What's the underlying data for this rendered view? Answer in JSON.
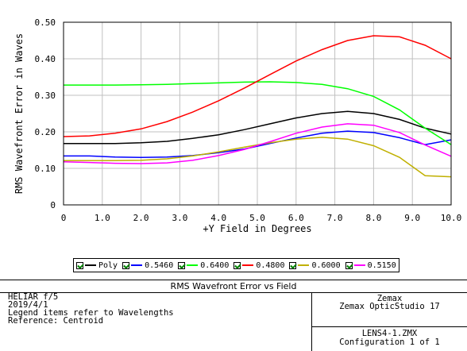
{
  "chart_data": {
    "type": "line",
    "xlabel": "+Y Field in Degrees",
    "ylabel": "RMS Wavefront Error in Waves",
    "xlim": [
      0,
      10
    ],
    "ylim": [
      0,
      0.5
    ],
    "x_ticks": [
      "0",
      "1.0",
      "2.0",
      "3.0",
      "4.0",
      "5.0",
      "6.0",
      "7.0",
      "8.0",
      "9.0",
      "10.0"
    ],
    "y_ticks": [
      "0",
      "0.10",
      "0.20",
      "0.30",
      "0.40",
      "0.50"
    ],
    "x_tick_values": [
      0,
      1,
      2,
      3,
      4,
      5,
      6,
      7,
      8,
      9,
      10
    ],
    "y_tick_values": [
      0,
      0.1,
      0.2,
      0.3,
      0.4,
      0.5
    ],
    "grid": true,
    "legend_position": "bottom",
    "series": [
      {
        "name": "Poly",
        "color": "#000000",
        "x": [
          0,
          0.67,
          1.33,
          2,
          2.67,
          3.33,
          4,
          4.67,
          5.33,
          6,
          6.67,
          7.33,
          8,
          8.67,
          9.33,
          10
        ],
        "y": [
          0.168,
          0.168,
          0.168,
          0.17,
          0.174,
          0.182,
          0.192,
          0.206,
          0.222,
          0.238,
          0.25,
          0.256,
          0.25,
          0.234,
          0.21,
          0.194
        ]
      },
      {
        "name": "0.5460",
        "color": "#0000ff",
        "x": [
          0,
          0.67,
          1.33,
          2,
          2.67,
          3.33,
          4,
          4.67,
          5.33,
          6,
          6.67,
          7.33,
          8,
          8.67,
          9.33,
          10
        ],
        "y": [
          0.134,
          0.134,
          0.131,
          0.13,
          0.131,
          0.135,
          0.143,
          0.153,
          0.168,
          0.183,
          0.196,
          0.202,
          0.198,
          0.184,
          0.165,
          0.178
        ]
      },
      {
        "name": "0.6400",
        "color": "#00ff00",
        "x": [
          0,
          0.67,
          1.33,
          2,
          2.67,
          3.33,
          4,
          4.67,
          5.33,
          6,
          6.67,
          7.33,
          8,
          8.67,
          9.33,
          10
        ],
        "y": [
          0.328,
          0.328,
          0.328,
          0.329,
          0.33,
          0.332,
          0.334,
          0.336,
          0.337,
          0.335,
          0.33,
          0.318,
          0.297,
          0.26,
          0.21,
          0.165
        ]
      },
      {
        "name": "0.4800",
        "color": "#ff0000",
        "x": [
          0,
          0.67,
          1.33,
          2,
          2.67,
          3.33,
          4,
          4.67,
          5.33,
          6,
          6.67,
          7.33,
          8,
          8.67,
          9.33,
          10
        ],
        "y": [
          0.187,
          0.189,
          0.196,
          0.208,
          0.228,
          0.254,
          0.285,
          0.32,
          0.357,
          0.394,
          0.425,
          0.45,
          0.463,
          0.46,
          0.437,
          0.4
        ]
      },
      {
        "name": "0.6000",
        "color": "#c0b000",
        "x": [
          0,
          0.67,
          1.33,
          2,
          2.67,
          3.33,
          4,
          4.67,
          5.33,
          6,
          6.67,
          7.33,
          8,
          8.67,
          9.33,
          10
        ],
        "y": [
          0.121,
          0.121,
          0.121,
          0.122,
          0.126,
          0.134,
          0.145,
          0.158,
          0.17,
          0.18,
          0.185,
          0.18,
          0.162,
          0.13,
          0.08,
          0.077
        ]
      },
      {
        "name": "0.5150",
        "color": "#ff00ff",
        "x": [
          0,
          0.67,
          1.33,
          2,
          2.67,
          3.33,
          4,
          4.67,
          5.33,
          6,
          6.67,
          7.33,
          8,
          8.67,
          9.33,
          10
        ],
        "y": [
          0.118,
          0.116,
          0.114,
          0.113,
          0.115,
          0.122,
          0.135,
          0.152,
          0.173,
          0.196,
          0.213,
          0.222,
          0.218,
          0.198,
          0.164,
          0.133
        ]
      }
    ]
  },
  "infobox": {
    "title": "RMS Wavefront Error vs Field",
    "left_lines": [
      "HELIAR  f/5",
      "2019/4/1",
      "Legend items refer to Wavelengths",
      "Reference: Centroid"
    ],
    "right_top": [
      "Zemax",
      "Zemax OpticStudio 17"
    ],
    "right_bottom": [
      "LENS4-1.ZMX",
      "Configuration 1 of 1"
    ]
  }
}
